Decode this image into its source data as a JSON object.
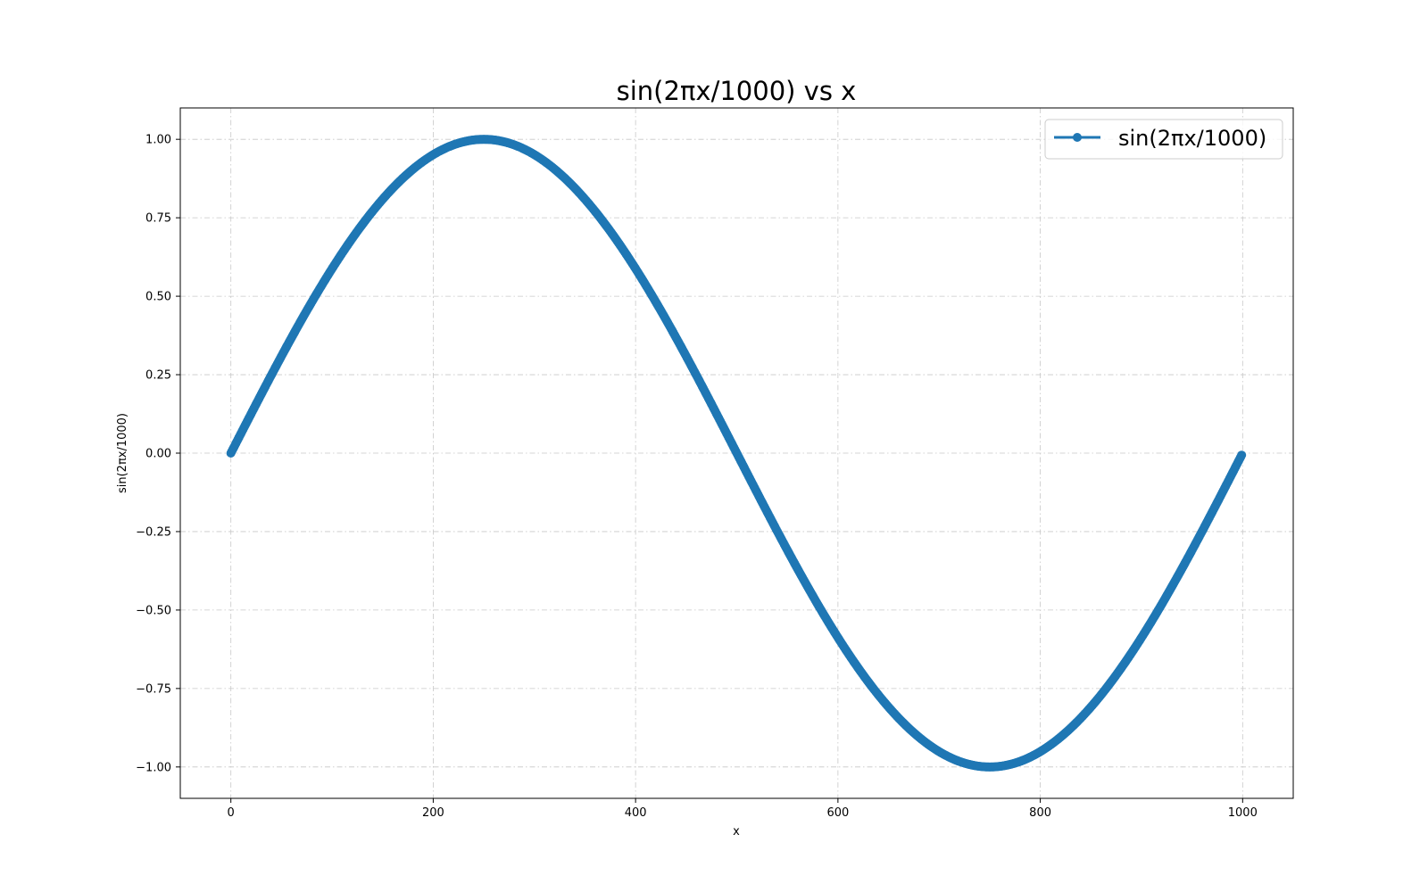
{
  "chart_data": {
    "type": "line",
    "title": "sin(2πx/1000) vs x",
    "xlabel": "x",
    "ylabel": "sin(2πx/1000)",
    "xlim": [
      -50,
      1050
    ],
    "ylim": [
      -1.1,
      1.1
    ],
    "xticks": [
      0,
      200,
      400,
      600,
      800,
      1000
    ],
    "xtick_labels": [
      "0",
      "200",
      "400",
      "600",
      "800",
      "1000"
    ],
    "yticks": [
      -1.0,
      -0.75,
      -0.5,
      -0.25,
      0.0,
      0.25,
      0.5,
      0.75,
      1.0
    ],
    "ytick_labels": [
      "−1.00",
      "−0.75",
      "−0.50",
      "−0.25",
      "0.00",
      "0.25",
      "0.50",
      "0.75",
      "1.00"
    ],
    "grid": true,
    "legend_position": "top-right",
    "series": [
      {
        "name": "sin(2πx/1000)",
        "color": "#1f77b4",
        "marker": "circle",
        "x_start": 0,
        "x_end": 999,
        "x_step": 1,
        "function": "sin(2*pi*x/1000)"
      }
    ]
  }
}
